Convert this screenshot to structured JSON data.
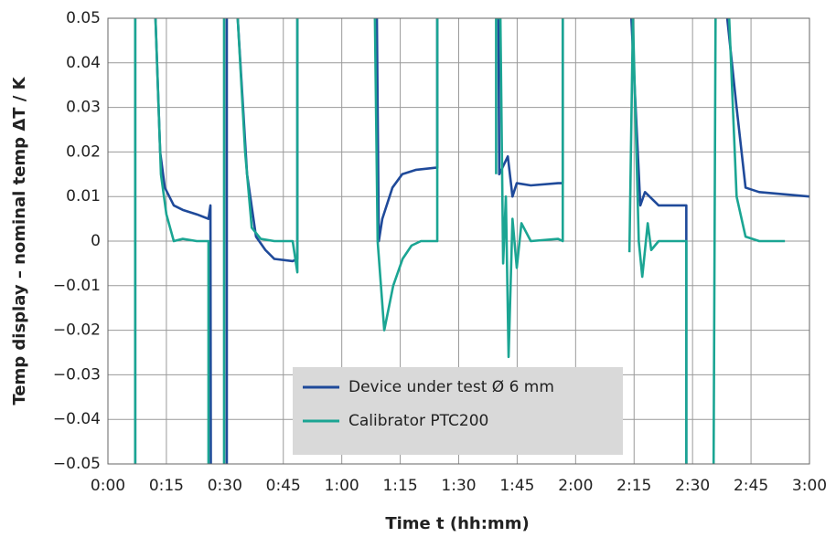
{
  "chart_data": {
    "type": "line",
    "xlabel": "Time t (hh:mm)",
    "ylabel": "Temp display – nominal temp ΔT / K",
    "xlim": [
      0,
      180
    ],
    "xticks": [
      {
        "value": 0,
        "label": "0:00"
      },
      {
        "value": 15,
        "label": "0:15"
      },
      {
        "value": 30,
        "label": "0:30"
      },
      {
        "value": 45,
        "label": "0:45"
      },
      {
        "value": 60,
        "label": "1:00"
      },
      {
        "value": 75,
        "label": "1:15"
      },
      {
        "value": 90,
        "label": "1:30"
      },
      {
        "value": 105,
        "label": "1:45"
      },
      {
        "value": 120,
        "label": "2:00"
      },
      {
        "value": 135,
        "label": "2:15"
      },
      {
        "value": 150,
        "label": "2:30"
      },
      {
        "value": 165,
        "label": "2:45"
      },
      {
        "value": 180,
        "label": "3:00"
      }
    ],
    "ylim": [
      -0.05,
      0.05
    ],
    "yticks": [
      0.05,
      0.04,
      0.03,
      0.02,
      0.01,
      0,
      {
        "value": -0.01,
        "label": "−0.01"
      },
      {
        "value": -0.02,
        "label": "−0.02"
      },
      {
        "value": -0.03,
        "label": "−0.03"
      },
      {
        "value": -0.04,
        "label": "−0.04"
      },
      {
        "value": -0.05,
        "label": "−0.05"
      }
    ],
    "grid": true,
    "legend": "lower center",
    "series": [
      {
        "name": "Device under test Ø 6 mm",
        "color": "#1f4a9a",
        "x": [
          7.0,
          7.0,
          null,
          12.2,
          13.4,
          14.6,
          16.9,
          19.2,
          22.8,
          25.8,
          26.3,
          26.4,
          null,
          30.5,
          30.5,
          null,
          33.3,
          35.7,
          38.0,
          40.4,
          42.7,
          47.4,
          48.6,
          48.6,
          null,
          69.0,
          69.5,
          70.4,
          73.0,
          75.5,
          79.1,
          84.5,
          84.5,
          null,
          100.2,
          100.4,
          102.6,
          103.8,
          104.9,
          108.5,
          115.5,
          116.7,
          116.7,
          null,
          134.3,
          136.6,
          137.8,
          141.3,
          148.4,
          148.4,
          null,
          158.9,
          161.3,
          163.6,
          167.1,
          180
        ],
        "values": [
          -0.05,
          0.05,
          null,
          0.05,
          0.02,
          0.012,
          0.008,
          0.007,
          0.006,
          0.005,
          0.008,
          -0.05,
          null,
          -0.05,
          0.05,
          null,
          0.05,
          0.015,
          0.001,
          -0.002,
          -0.004,
          -0.0045,
          -0.004,
          0.05,
          null,
          0.05,
          0.0,
          0.005,
          0.012,
          0.015,
          0.016,
          0.0165,
          0.05,
          null,
          0.05,
          0.015,
          0.019,
          0.01,
          0.013,
          0.0125,
          0.013,
          0.013,
          0.05,
          null,
          0.05,
          0.008,
          0.011,
          0.008,
          0.008,
          -0.05,
          null,
          0.05,
          0.03,
          0.012,
          0.011,
          0.01
        ]
      },
      {
        "name": "Calibrator PTC200",
        "color": "#1ba593",
        "x": [
          7.0,
          7.0,
          null,
          12.2,
          13.6,
          15.0,
          16.9,
          19.2,
          22.8,
          25.8,
          25.8,
          null,
          29.8,
          29.8,
          null,
          33.3,
          35.2,
          36.9,
          39.2,
          42.7,
          47.4,
          48.6,
          48.6,
          null,
          68.5,
          69.2,
          70.9,
          73.2,
          75.6,
          77.9,
          80.3,
          84.5,
          84.5,
          null,
          99.6,
          99.6,
          100.7,
          101.4,
          102.1,
          102.8,
          103.8,
          104.9,
          106.1,
          108.5,
          115.5,
          116.7,
          116.7,
          null,
          133.8,
          134.7,
          136.2,
          137.1,
          138.5,
          139.4,
          141.3,
          148.4,
          148.4,
          null,
          155.4,
          155.9,
          null,
          159.4,
          161.3,
          163.6,
          167.1,
          173.7
        ],
        "values": [
          -0.05,
          0.05,
          null,
          0.05,
          0.015,
          0.006,
          0.0,
          0.0005,
          0.0,
          0.0,
          -0.05,
          null,
          -0.05,
          0.05,
          null,
          0.05,
          0.02,
          0.003,
          0.0005,
          0.0,
          0.0,
          -0.007,
          0.05,
          null,
          0.05,
          0.0,
          -0.02,
          -0.01,
          -0.004,
          -0.001,
          0.0,
          0.0,
          0.05,
          null,
          0.015,
          0.05,
          0.05,
          -0.005,
          0.01,
          -0.026,
          0.005,
          -0.006,
          0.004,
          0.0,
          0.0005,
          0.0,
          0.05,
          null,
          -0.0025,
          0.05,
          0.0,
          -0.008,
          0.004,
          -0.002,
          0.0,
          0.0,
          -0.05,
          null,
          -0.05,
          0.05,
          null,
          0.05,
          0.01,
          0.001,
          0.0,
          0.0
        ]
      }
    ]
  }
}
